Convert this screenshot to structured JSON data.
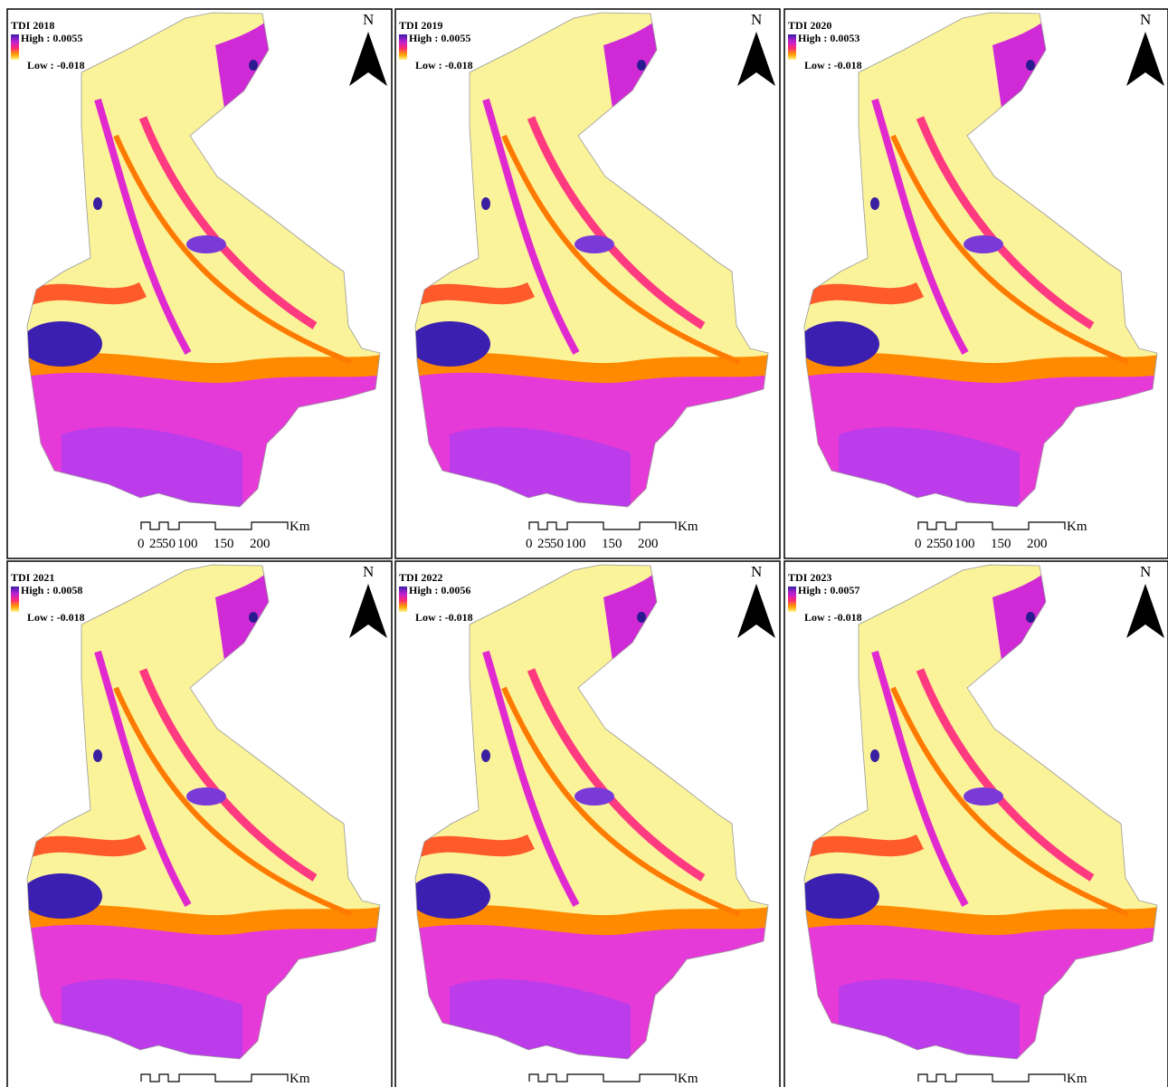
{
  "panels": [
    {
      "title": "TDI 2018",
      "high": "High : 0.0055",
      "low": "Low : -0.018",
      "north": "N",
      "scale_unit": "Km",
      "scale_labels": [
        "0",
        "25",
        "50",
        "100",
        "150",
        "200"
      ]
    },
    {
      "title": "TDI 2019",
      "high": "High : 0.0055",
      "low": "Low : -0.018",
      "north": "N",
      "scale_unit": "Km",
      "scale_labels": [
        "0",
        "25",
        "50",
        "100",
        "150",
        "200"
      ]
    },
    {
      "title": "TDI 2020",
      "high": "High : 0.0053",
      "low": "Low : -0.018",
      "north": "N",
      "scale_unit": "Km",
      "scale_labels": [
        "0",
        "25",
        "50",
        "100",
        "150",
        "200"
      ]
    },
    {
      "title": "TDI 2021",
      "high": "High : 0.0058",
      "low": "Low : -0.018",
      "north": "N",
      "scale_unit": "Km"
    },
    {
      "title": "TDI 2022",
      "high": "High : 0.0056",
      "low": "Low : -0.018",
      "north": "N",
      "scale_unit": "Km"
    },
    {
      "title": "TDI 2023",
      "high": "High : 0.0057",
      "low": "Low : -0.018",
      "north": "N",
      "scale_unit": "Km"
    }
  ]
}
